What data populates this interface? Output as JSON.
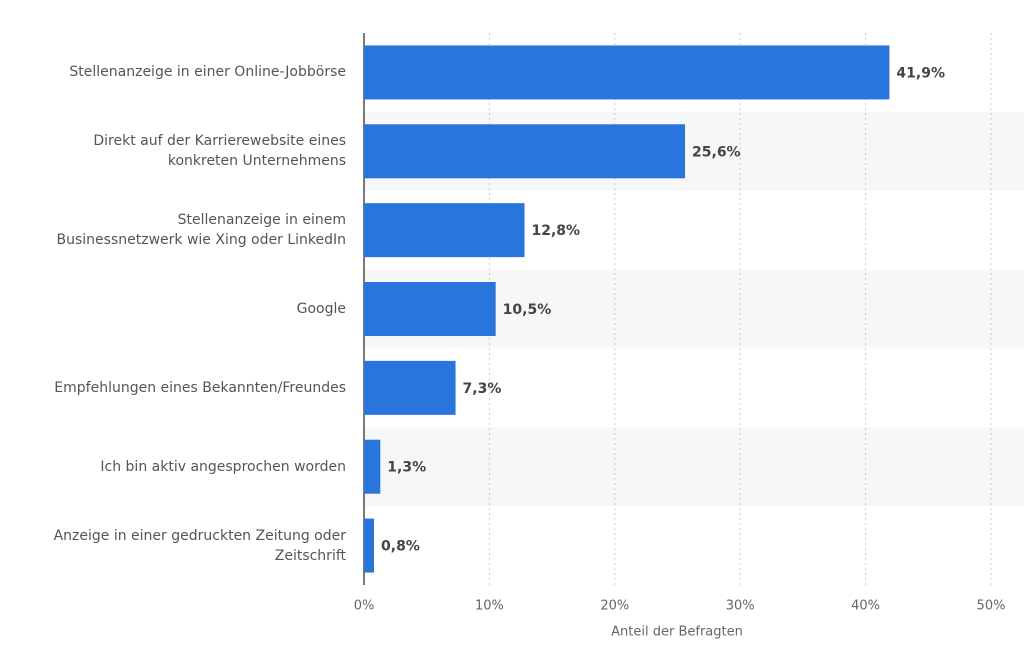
{
  "chart_data": {
    "type": "bar",
    "orientation": "horizontal",
    "x_label": "Anteil der Befragten",
    "categories": [
      "Stellenanzeige in einer Online-Jobbörse",
      "Direkt auf der Karrierewebsite eines\nkonkreten Unternehmens",
      "Stellenanzeige in einem\nBusinessnetzwerk wie Xing oder LinkedIn",
      "Google",
      "Empfehlungen eines Bekannten/Freundes",
      "Ich bin aktiv angesprochen worden",
      "Anzeige in einer gedruckten Zeitung oder\nZeitschrift"
    ],
    "values": [
      41.9,
      25.6,
      12.8,
      10.5,
      7.3,
      1.3,
      0.8
    ],
    "value_labels": [
      "41,9%",
      "25,6%",
      "12,8%",
      "10,5%",
      "7,3%",
      "1,3%",
      "0,8%"
    ],
    "color": "#2876dd",
    "xlim": [
      0,
      50
    ],
    "xticks": [
      {
        "value": 0,
        "label": "0%"
      },
      {
        "value": 10,
        "label": "10%"
      },
      {
        "value": 20,
        "label": "20%"
      },
      {
        "value": 30,
        "label": "30%"
      },
      {
        "value": 40,
        "label": "40%"
      },
      {
        "value": 50,
        "label": "50%"
      }
    ],
    "grid": true
  }
}
